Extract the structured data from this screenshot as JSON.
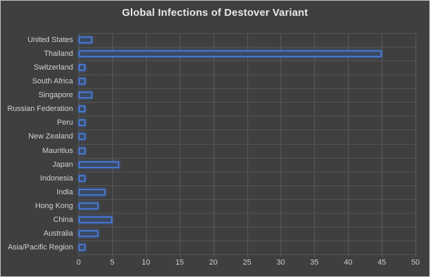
{
  "chart": {
    "title": "Global Infections of Destover Variant",
    "colors": {
      "background": "#3f3f3f",
      "frame_border": "#c6c6c6",
      "gridline": "#5a5a5a",
      "text": "#d2d2d2",
      "title_text": "#e8e8e8",
      "bar_fill": "#3b4a63",
      "bar_border": "#4677d0"
    }
  },
  "chart_data": {
    "type": "bar",
    "orientation": "horizontal",
    "title": "Global Infections of Destover Variant",
    "xlabel": "",
    "ylabel": "",
    "categories": [
      "United States",
      "Thailand",
      "Switzerland",
      "South Africa",
      "Singapore",
      "Russian Federation",
      "Peru",
      "New Zealand",
      "Mauritius",
      "Japan",
      "Indonesia",
      "India",
      "Hong Kong",
      "China",
      "Australia",
      "Asia/Pacific Region"
    ],
    "values": [
      2,
      45,
      1,
      1,
      2,
      1,
      1,
      1,
      1,
      6,
      1,
      4,
      3,
      5,
      3,
      1
    ],
    "xlim": [
      0,
      50
    ],
    "xticks": [
      0,
      5,
      10,
      15,
      20,
      25,
      30,
      35,
      40,
      45,
      50
    ],
    "grid": true,
    "legend": false
  }
}
